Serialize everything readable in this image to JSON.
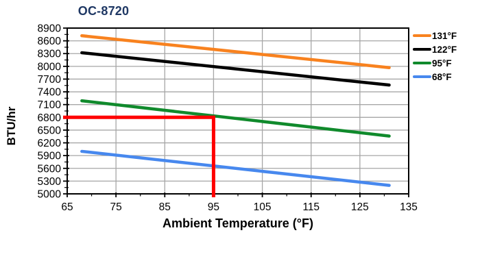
{
  "page": {
    "background": "#FFFFFF"
  },
  "chart_data": {
    "type": "line",
    "title": "OC-8720",
    "title_color": "#1F3864",
    "xlabel": "Ambient Temperature (°F)",
    "ylabel": "BTU/hr",
    "xlim": [
      65,
      135
    ],
    "ylim": [
      5000,
      8900
    ],
    "x_major_ticks": [
      65,
      75,
      85,
      95,
      105,
      115,
      125,
      135
    ],
    "x_minor_step": 5,
    "y_major_ticks": [
      8900,
      8600,
      8300,
      8000,
      7700,
      7400,
      7100,
      6800,
      6500,
      6200,
      5900,
      5600,
      5300,
      5000
    ],
    "y_minor_step": 150,
    "grid": true,
    "grid_color": "#A6A6A6",
    "axis_color": "#000000",
    "legend_position": "right",
    "series": [
      {
        "name": "131°F",
        "color": "#F8821F",
        "x": [
          68,
          131
        ],
        "y": [
          8720,
          7970
        ]
      },
      {
        "name": "122°F",
        "color": "#000000",
        "x": [
          68,
          131
        ],
        "y": [
          8320,
          7560
        ]
      },
      {
        "name": "95°F",
        "color": "#108A2C",
        "x": [
          68,
          131
        ],
        "y": [
          7190,
          6360
        ]
      },
      {
        "name": "68°F",
        "color": "#4788EE",
        "x": [
          68,
          131
        ],
        "y": [
          6000,
          5200
        ]
      }
    ],
    "annotation": {
      "type": "guide-lines",
      "color": "#FF0000",
      "x": 95,
      "y": 6800,
      "meaning": "at ambient 95°F the 95°F curve yields 6800 BTU/hr"
    }
  }
}
